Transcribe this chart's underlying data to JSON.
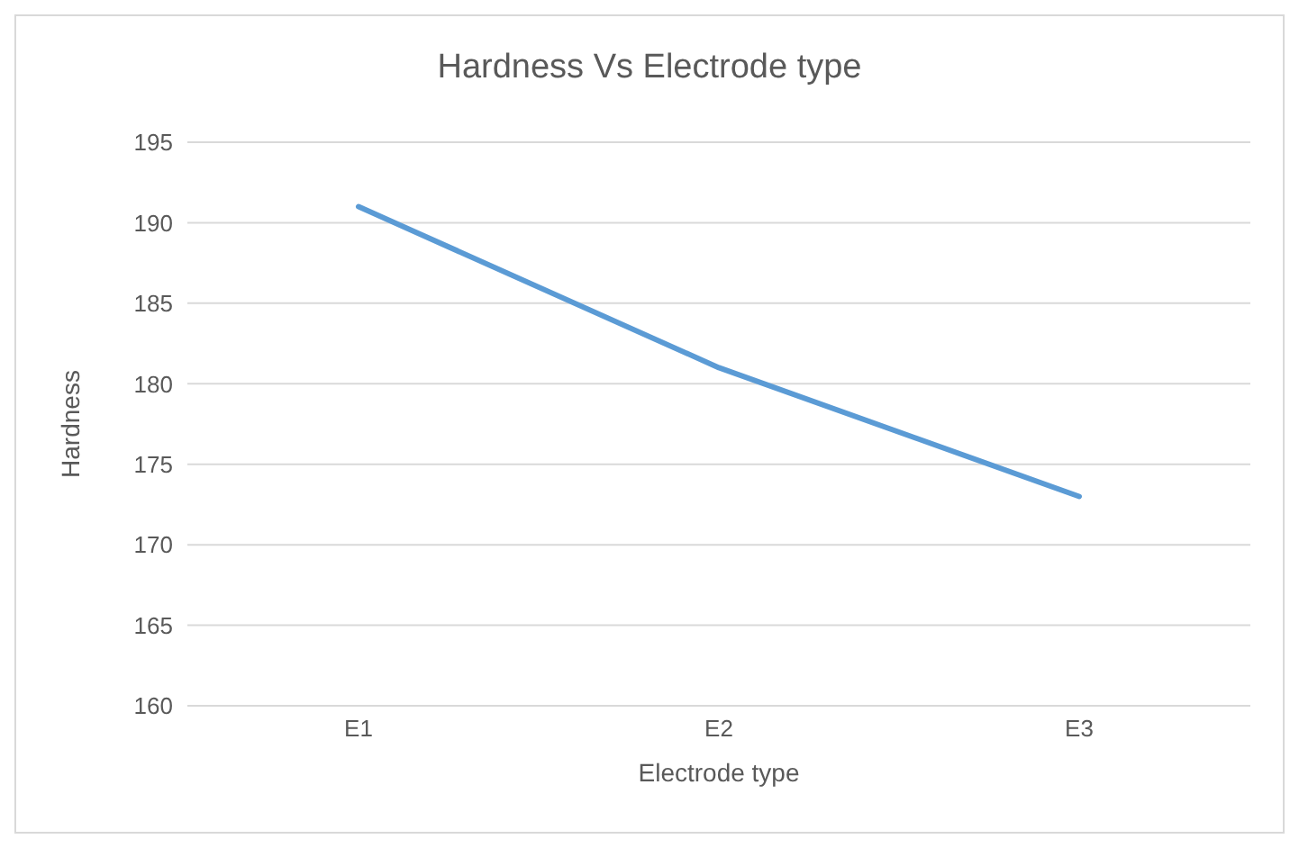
{
  "chart_data": {
    "type": "line",
    "title": "Hardness Vs Electrode type",
    "xlabel": "Electrode type",
    "ylabel": "Hardness",
    "categories": [
      "E1",
      "E2",
      "E3"
    ],
    "series": [
      {
        "color": "#5b9bd5",
        "values": [
          191,
          181,
          173
        ]
      }
    ],
    "ylim": [
      160,
      195
    ],
    "yticks": [
      160,
      165,
      170,
      175,
      180,
      185,
      190,
      195
    ],
    "grid": "y",
    "legend": false,
    "marker": "none",
    "line_style": "solid"
  }
}
